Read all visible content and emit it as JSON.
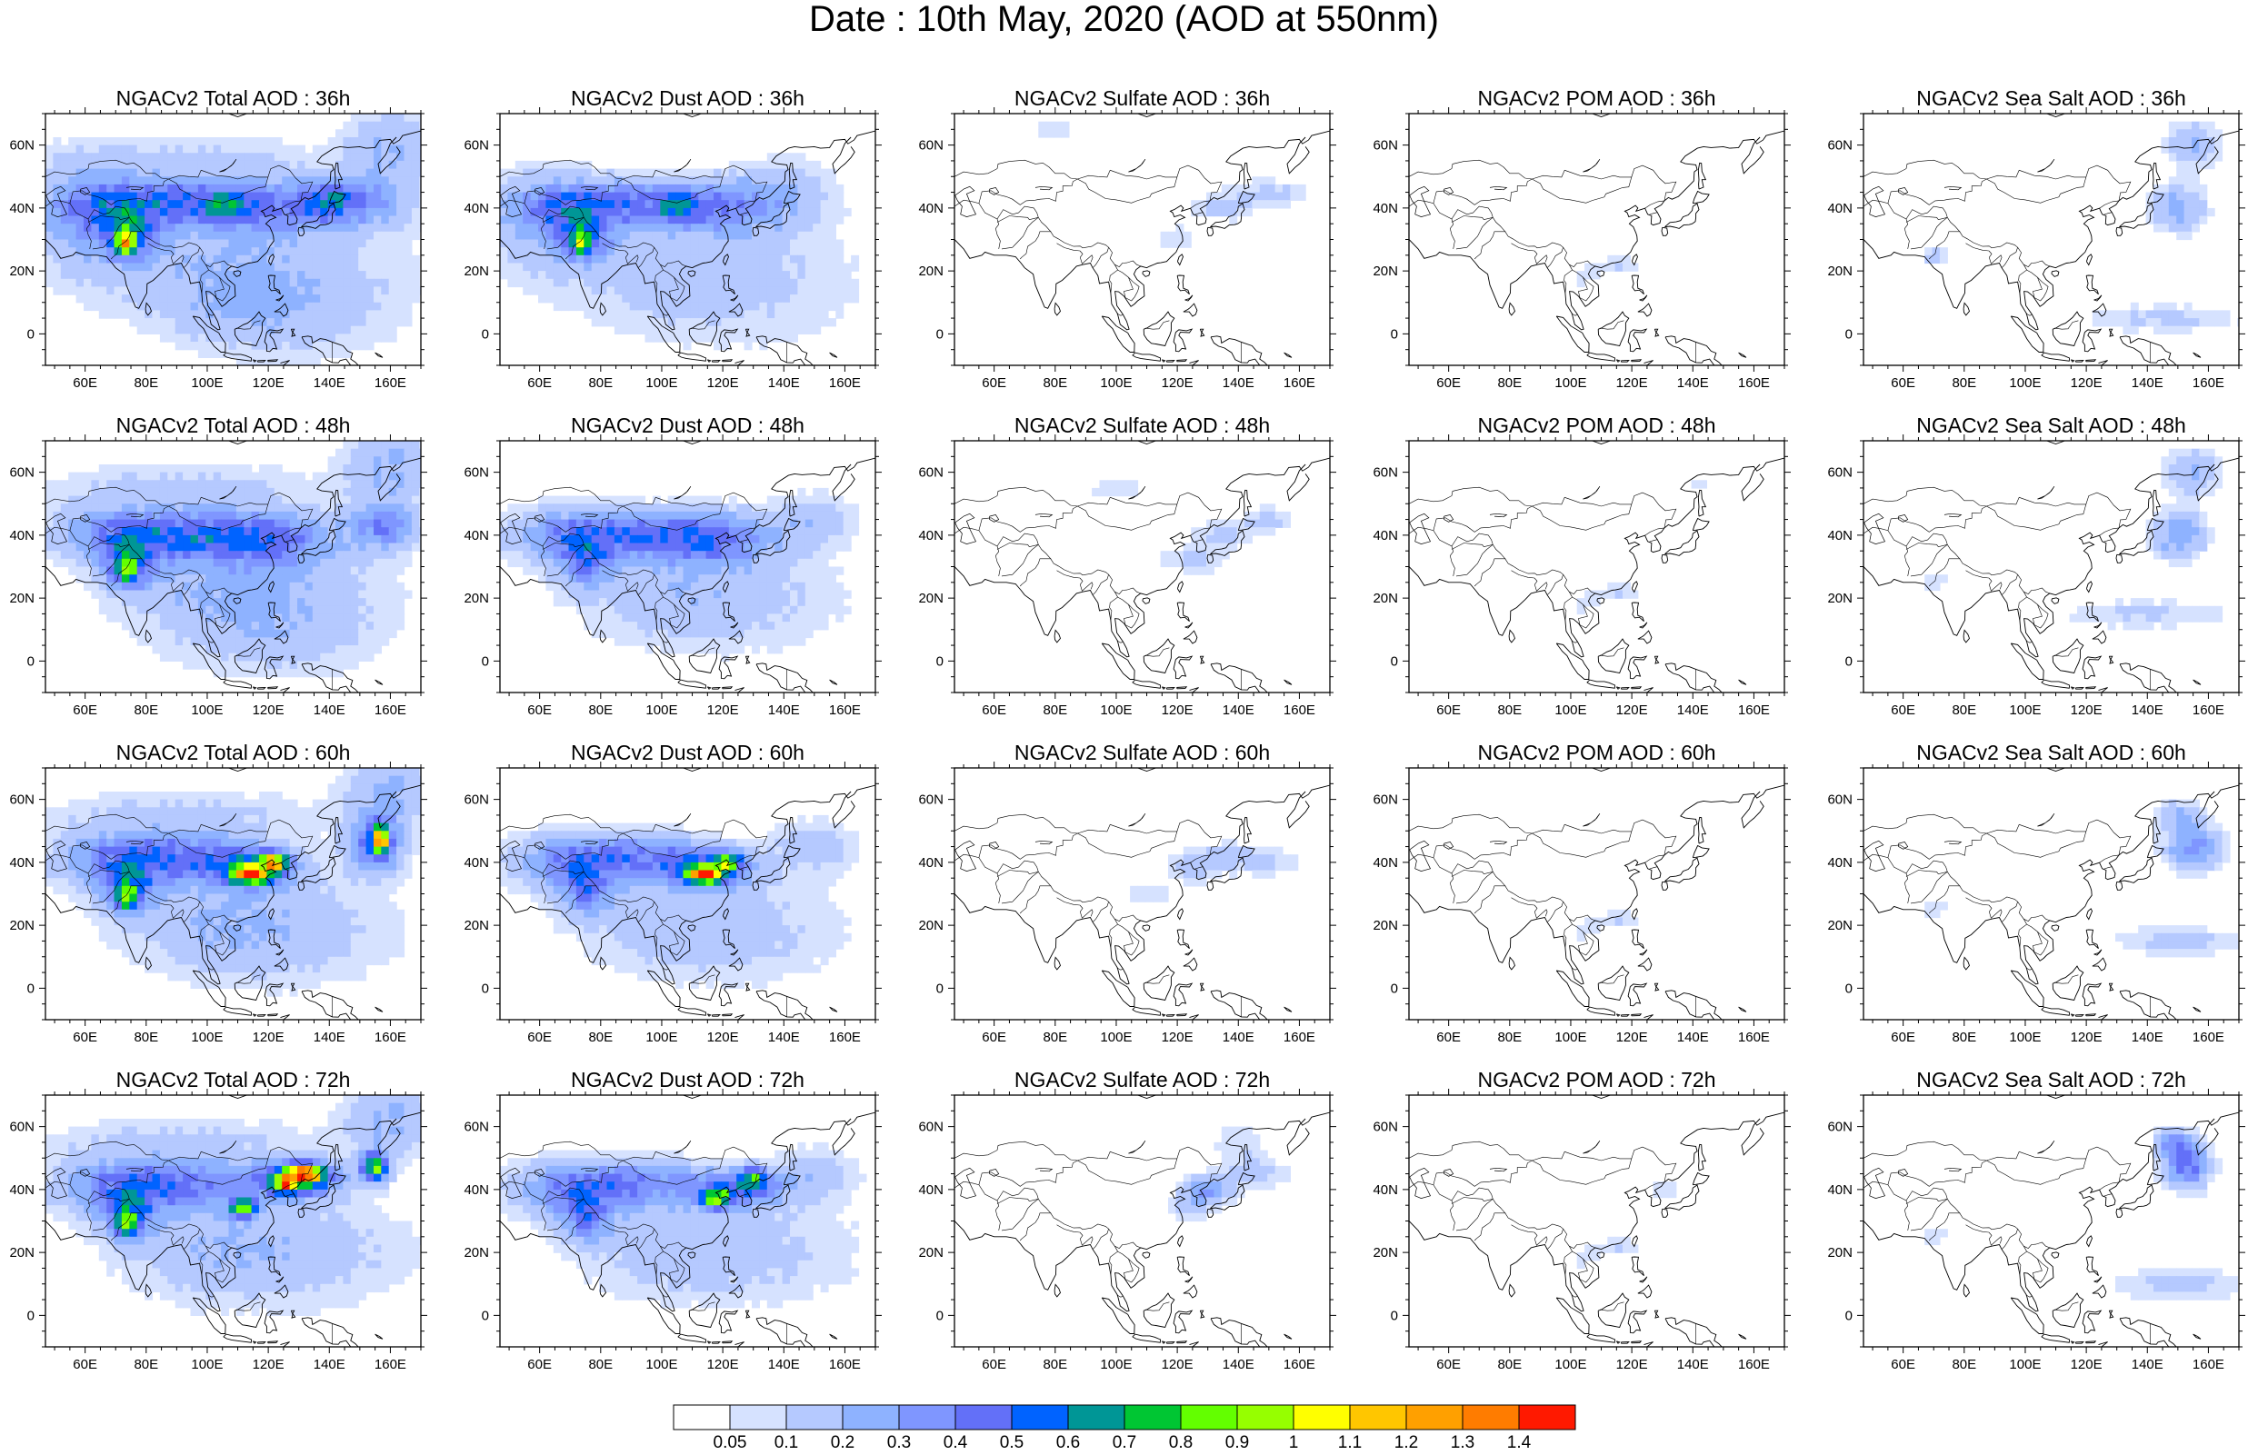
{
  "title": "Date : 10th May, 2020 (AOD at 550nm)",
  "map": {
    "lon_range": [
      47,
      170
    ],
    "lat_range": [
      -10,
      70
    ],
    "x_ticks": [
      "60E",
      "80E",
      "100E",
      "120E",
      "140E",
      "160E"
    ],
    "x_tick_values": [
      60,
      80,
      100,
      120,
      140,
      160
    ],
    "y_ticks": [
      "60N",
      "40N",
      "20N",
      "0"
    ],
    "y_tick_values": [
      60,
      40,
      20,
      0
    ]
  },
  "panels": [
    [
      {
        "title": "NGACv2 Total AOD : 36h",
        "kind": "total",
        "lead": 36
      },
      {
        "title": "NGACv2 Dust AOD : 36h",
        "kind": "dust",
        "lead": 36
      },
      {
        "title": "NGACv2 Sulfate AOD : 36h",
        "kind": "sulfate",
        "lead": 36
      },
      {
        "title": "NGACv2 POM AOD : 36h",
        "kind": "pom",
        "lead": 36
      },
      {
        "title": "NGACv2 Sea Salt AOD : 36h",
        "kind": "seasalt",
        "lead": 36
      }
    ],
    [
      {
        "title": "NGACv2 Total AOD : 48h",
        "kind": "total",
        "lead": 48
      },
      {
        "title": "NGACv2 Dust AOD : 48h",
        "kind": "dust",
        "lead": 48
      },
      {
        "title": "NGACv2 Sulfate AOD : 48h",
        "kind": "sulfate",
        "lead": 48
      },
      {
        "title": "NGACv2 POM AOD : 48h",
        "kind": "pom",
        "lead": 48
      },
      {
        "title": "NGACv2 Sea Salt AOD : 48h",
        "kind": "seasalt",
        "lead": 48
      }
    ],
    [
      {
        "title": "NGACv2 Total AOD : 60h",
        "kind": "total",
        "lead": 60
      },
      {
        "title": "NGACv2 Dust AOD : 60h",
        "kind": "dust",
        "lead": 60
      },
      {
        "title": "NGACv2 Sulfate AOD : 60h",
        "kind": "sulfate",
        "lead": 60
      },
      {
        "title": "NGACv2 POM AOD : 60h",
        "kind": "pom",
        "lead": 60
      },
      {
        "title": "NGACv2 Sea Salt AOD : 60h",
        "kind": "seasalt",
        "lead": 60
      }
    ],
    [
      {
        "title": "NGACv2 Total AOD : 72h",
        "kind": "total",
        "lead": 72
      },
      {
        "title": "NGACv2 Dust AOD : 72h",
        "kind": "dust",
        "lead": 72
      },
      {
        "title": "NGACv2 Sulfate AOD : 72h",
        "kind": "sulfate",
        "lead": 72
      },
      {
        "title": "NGACv2 POM AOD : 72h",
        "kind": "pom",
        "lead": 72
      },
      {
        "title": "NGACv2 Sea Salt  AOD : 72h",
        "kind": "seasalt",
        "lead": 72
      }
    ]
  ],
  "colorbar": {
    "labels": [
      "0.05",
      "0.1",
      "0.2",
      "0.3",
      "0.4",
      "0.5",
      "0.6",
      "0.7",
      "0.8",
      "0.9",
      "1",
      "1.1",
      "1.2",
      "1.3",
      "1.4"
    ],
    "colors": [
      "#ffffff",
      "#d6e2ff",
      "#b5c9ff",
      "#8eb2ff",
      "#7f96ff",
      "#6370f8",
      "#0063ff",
      "#009696",
      "#00c633",
      "#63ff00",
      "#96ff00",
      "#ffff00",
      "#ffc600",
      "#ffa000",
      "#ff7c00",
      "#ff1900"
    ]
  }
}
